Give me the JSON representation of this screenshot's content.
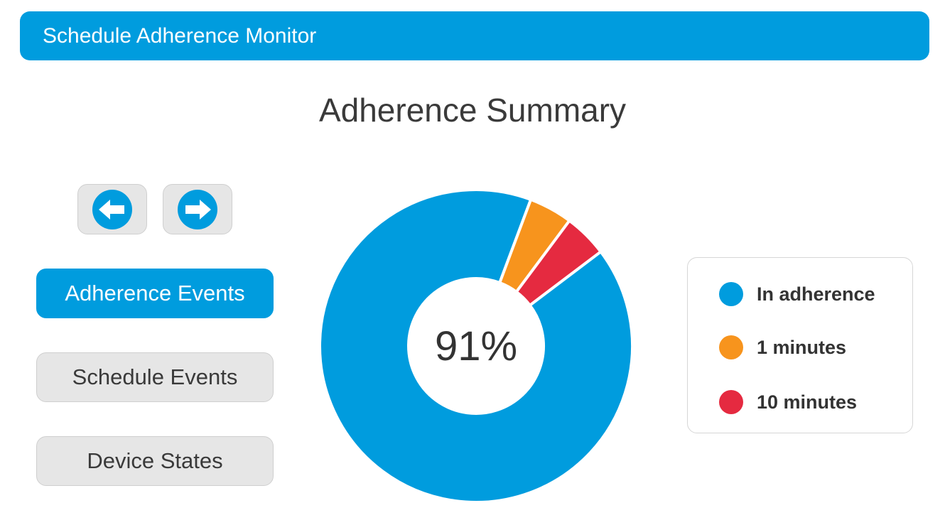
{
  "header": {
    "title": "Schedule Adherence Monitor",
    "color": "#009cde"
  },
  "summary": {
    "title": "Adherence Summary",
    "center_label": "91%"
  },
  "navigation": {
    "prev_icon": "arrow-left-circle-icon",
    "next_icon": "arrow-right-circle-icon"
  },
  "sidebar": {
    "buttons": [
      {
        "label": "Adherence Events",
        "active": true
      },
      {
        "label": "Schedule Events",
        "active": false
      },
      {
        "label": "Device States",
        "active": false
      }
    ]
  },
  "chart_data": {
    "type": "pie",
    "donut": true,
    "categories": [
      "In adherence",
      "1 minutes",
      "10 minutes"
    ],
    "values": [
      91,
      4.5,
      4.5
    ],
    "colors": [
      "#009cde",
      "#f7941d",
      "#e52a40"
    ],
    "center_text": "91%",
    "legend_position": "right"
  },
  "legend": {
    "items": [
      {
        "label": "In adherence",
        "color": "#009cde"
      },
      {
        "label": "1 minutes",
        "color": "#f7941d"
      },
      {
        "label": "10 minutes",
        "color": "#e52a40"
      }
    ]
  }
}
